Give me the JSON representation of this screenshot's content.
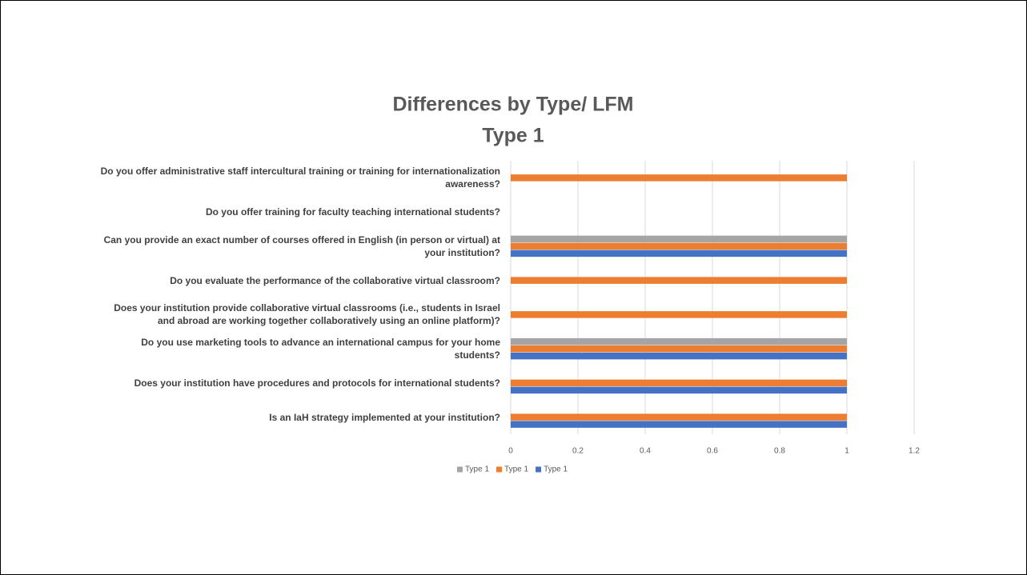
{
  "chart_data": {
    "type": "bar",
    "orientation": "horizontal",
    "title": "Differences by Type/ LFM",
    "subtitle": "Type 1",
    "categories": [
      "Do you offer administrative staff intercultural training or training for internationalization awareness?",
      "Do you offer training for faculty teaching international students?",
      "Can you provide an exact number of courses offered in English (in person or virtual) at your institution?",
      "Do you evaluate the performance of the collaborative virtual classroom?",
      "Does your institution provide collaborative virtual classrooms (i.e., students in Israel and abroad are working together collaboratively using an online platform)?",
      "Do you use marketing tools to advance an international campus for your home students?",
      "Does your institution have procedures and protocols for international students?",
      "Is an IaH strategy implemented at your institution?"
    ],
    "series": [
      {
        "name": "Type 1",
        "color": "#a5a5a5",
        "values": [
          null,
          null,
          1,
          null,
          null,
          1,
          null,
          null
        ]
      },
      {
        "name": "Type 1",
        "color": "#ed7d31",
        "values": [
          1,
          null,
          1,
          1,
          1,
          1,
          1,
          1
        ]
      },
      {
        "name": "Type 1",
        "color": "#4472c4",
        "values": [
          null,
          null,
          1,
          null,
          null,
          1,
          1,
          1
        ]
      }
    ],
    "xlim": [
      0,
      1.2
    ],
    "xticks": [
      0,
      0.2,
      0.4,
      0.6,
      0.8,
      1,
      1.2
    ],
    "grid": true,
    "legend": "bottom"
  }
}
